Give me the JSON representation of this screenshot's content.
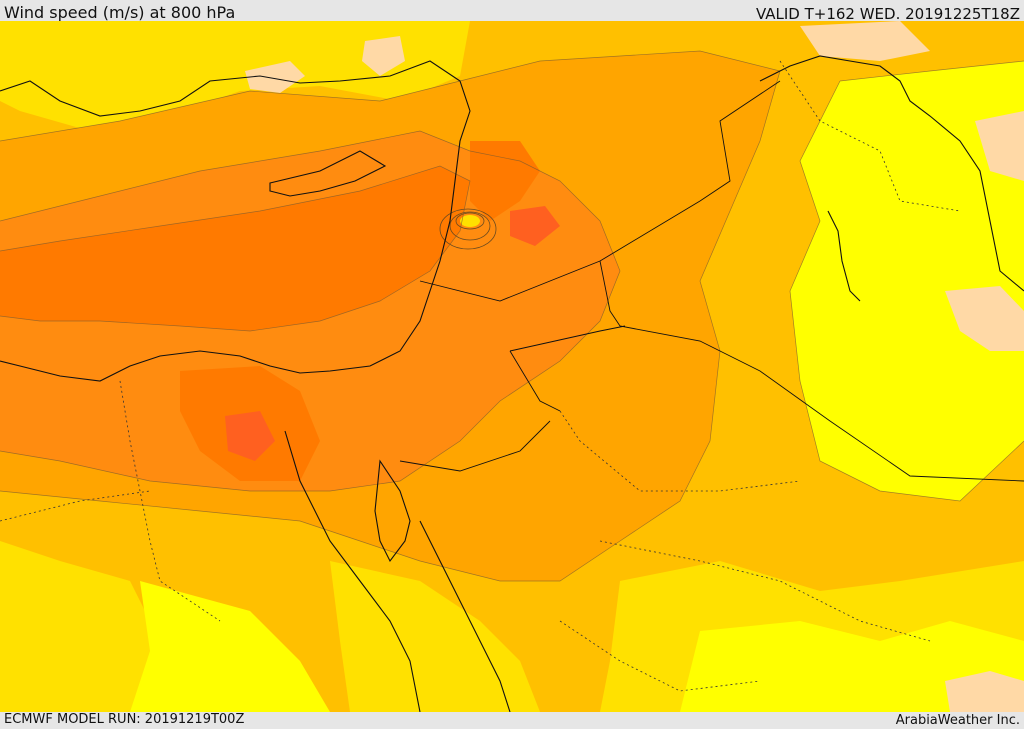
{
  "header": {
    "title": "Wind speed (m/s) at 800 hPa",
    "valid": "VALID T+162 WED. 20191225T18Z"
  },
  "footer": {
    "model_run": "ECMWF MODEL RUN: 20191219T00Z",
    "credit": "ArabiaWeather Inc."
  },
  "palette": {
    "background": "#e6e6e6",
    "light": "#ffd9a6",
    "very_low": "#ffff00",
    "low": "#ffe100",
    "mid": "#ffc000",
    "high": "#ffa500",
    "very_high": "#ff8c10",
    "max": "#ff7a00",
    "peak": "#ff6020",
    "border": "#111111"
  }
}
